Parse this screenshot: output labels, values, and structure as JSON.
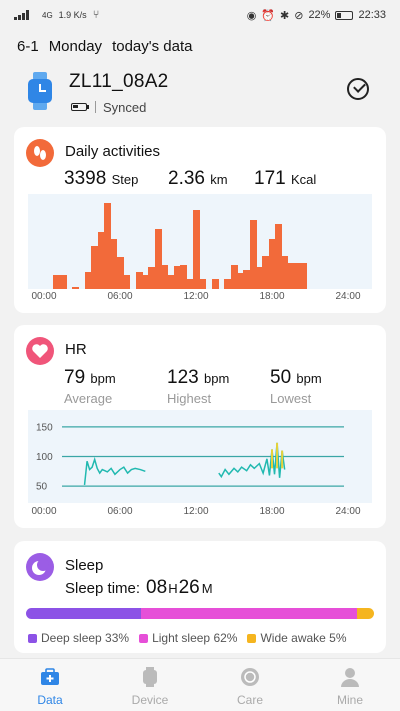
{
  "status_bar": {
    "network": "4G",
    "speed": "1.9 K/s",
    "battery": "22%",
    "time": "22:33"
  },
  "header": {
    "date": "6-1",
    "weekday": "Monday",
    "subtitle": "today's data"
  },
  "device": {
    "name": "ZL11_08A2",
    "sync_status": "Synced",
    "icon": "watch-icon"
  },
  "activities": {
    "title": "Daily activities",
    "icon": "footprints-icon",
    "accent": "#f26a3a",
    "steps": "3398",
    "steps_unit": "Step",
    "distance": "2.36",
    "distance_unit": "km",
    "calories": "171",
    "calories_unit": "Kcal",
    "x_ticks": [
      "00:00",
      "06:00",
      "12:00",
      "18:00",
      "24:00"
    ]
  },
  "hr": {
    "title": "HR",
    "icon": "heart-icon",
    "accent": "#f0557a",
    "average": "79",
    "highest": "123",
    "lowest": "50",
    "unit": "bpm",
    "average_label": "Average",
    "highest_label": "Highest",
    "lowest_label": "Lowest",
    "y_ticks": [
      "150",
      "100",
      "50"
    ],
    "x_ticks": [
      "00:00",
      "06:00",
      "12:00",
      "18:00",
      "24:00"
    ]
  },
  "sleep": {
    "title": "Sleep",
    "icon": "moon-icon",
    "accent": "#9b5de5",
    "time_label": "Sleep time:",
    "hours": "08",
    "hours_unit": "H",
    "minutes": "26",
    "minutes_unit": "M",
    "legend": [
      {
        "label": "Deep sleep 33%",
        "color": "#8c52e6",
        "fraction": 0.33
      },
      {
        "label": "Light sleep 62%",
        "color": "#e64fd8",
        "fraction": 0.62
      },
      {
        "label": "Wide awake 5%",
        "color": "#f5b51f",
        "fraction": 0.05
      }
    ]
  },
  "nav": {
    "items": [
      {
        "label": "Data",
        "icon": "data-icon"
      },
      {
        "label": "Device",
        "icon": "watch-icon"
      },
      {
        "label": "Care",
        "icon": "care-icon"
      },
      {
        "label": "Mine",
        "icon": "person-icon"
      }
    ]
  },
  "chart_data": [
    {
      "type": "bar",
      "title": "Daily activities",
      "x_unit": "hour",
      "x": [
        1,
        1.5,
        2.5,
        3.5,
        4,
        4.5,
        5,
        5.5,
        6,
        6.5,
        7.5,
        8,
        8.5,
        9,
        9.5,
        10,
        10.5,
        11,
        11.5,
        12,
        12.5,
        13.5,
        14.5,
        15,
        15.5,
        16,
        16.5,
        17,
        17.5,
        18,
        18.5,
        19,
        19.5,
        20,
        20.5
      ],
      "values": [
        1,
        1,
        0.1,
        1.2,
        3,
        4,
        6,
        3.5,
        2.2,
        1,
        1.2,
        1,
        1.5,
        4.2,
        1.7,
        1,
        1.6,
        1.7,
        0.7,
        5.5,
        0.7,
        0.7,
        0.7,
        1.7,
        1.1,
        1.3,
        4.8,
        1.5,
        2.3,
        3.5,
        4.5,
        2.3,
        1.8,
        1.8,
        1.8
      ],
      "xlim": [
        0,
        24
      ]
    },
    {
      "type": "line",
      "title": "HR",
      "x_unit": "hour",
      "y_unit": "bpm",
      "ylim": [
        30,
        170
      ],
      "xlim": [
        0,
        24
      ],
      "series": [
        {
          "x": [
            3.2,
            3.4,
            3.6,
            3.8,
            4.0,
            4.2,
            4.4,
            4.6,
            4.8,
            5.0,
            5.3,
            5.6,
            6.0,
            6.3,
            6.6,
            6.9,
            7.2,
            7.6,
            8.0
          ],
          "values": [
            52,
            92,
            78,
            82,
            95,
            80,
            72,
            78,
            76,
            74,
            80,
            70,
            78,
            82,
            72,
            78,
            80,
            78,
            75
          ]
        },
        {
          "x": [
            13.8,
            14.0,
            14.3,
            14.6,
            15.0,
            15.3,
            15.6,
            16.0,
            16.3,
            16.6,
            17.0,
            17.3,
            17.6,
            17.8,
            18.0,
            18.2,
            18.4,
            18.6,
            18.8,
            19.0
          ],
          "values": [
            72,
            66,
            78,
            70,
            80,
            74,
            82,
            76,
            86,
            80,
            88,
            72,
            96,
            68,
            112,
            70,
            123,
            64,
            110,
            78
          ]
        }
      ]
    },
    {
      "type": "bar",
      "title": "Sleep",
      "categories": [
        "Deep sleep",
        "Light sleep",
        "Wide awake"
      ],
      "values": [
        33,
        62,
        5
      ]
    }
  ]
}
